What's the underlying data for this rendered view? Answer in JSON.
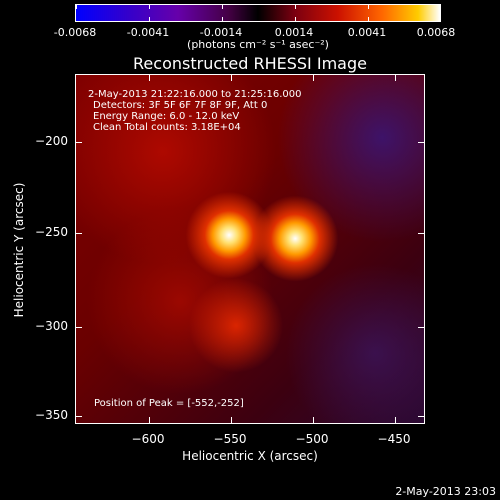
{
  "colorbar": {
    "tick_labels": [
      "-0.0068",
      "-0.0041",
      "-0.0014",
      "0.0014",
      "0.0041",
      "0.0068"
    ],
    "units": "(photons cm⁻² s⁻¹ asec⁻²)"
  },
  "title": "Reconstructed RHESSI Image",
  "annotations": {
    "time": "2-May-2013 21:22:16.000 to 21:25:16.000",
    "detectors": "Detectors: 3F 5F 6F 7F 8F 9F, Att 0",
    "energy": "Energy Range: 6.0 - 12.0 keV",
    "clean": "Clean     Total counts: 3.18E+04",
    "peak": "Position of Peak = [-552,-252]"
  },
  "axes": {
    "xlabel": "Heliocentric X (arcsec)",
    "ylabel": "Heliocentric Y (arcsec)",
    "xticks": [
      "−600",
      "−550",
      "−500",
      "−450"
    ],
    "yticks": [
      "−200",
      "−250",
      "−300",
      "−350"
    ]
  },
  "timestamp": "2-May-2013 23:03",
  "colors": {
    "background": "#000000",
    "foreground": "#ffffff"
  }
}
